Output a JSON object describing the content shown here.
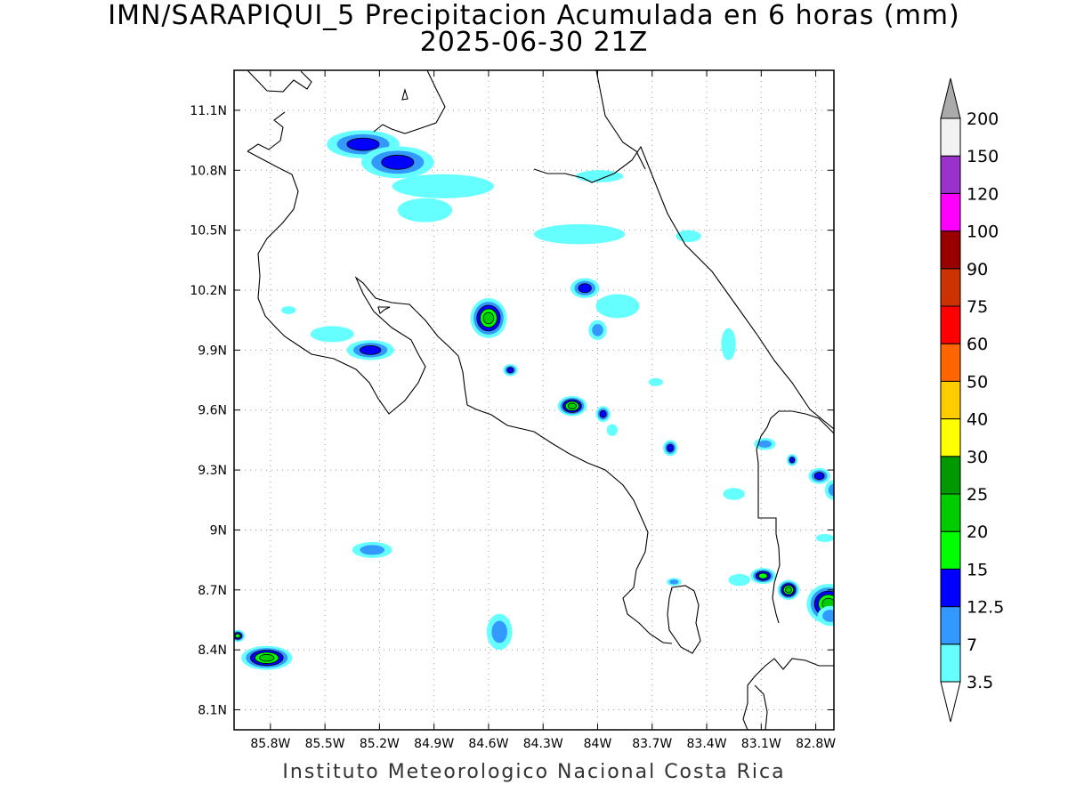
{
  "title": "IMN/SARAPIQUI_5 Precipitacion Acumulada en 6 horas (mm)",
  "subtitle": "2025-06-30 21Z",
  "footer": "Instituto Meteorologico Nacional Costa Rica",
  "map": {
    "lon_range": [
      -86.0,
      -82.7
    ],
    "lat_range": [
      8.0,
      11.3
    ],
    "lon_ticks": [
      "85.8W",
      "85.5W",
      "85.2W",
      "84.9W",
      "84.6W",
      "84.3W",
      "84W",
      "83.7W",
      "83.4W",
      "83.1W",
      "82.8W"
    ],
    "lon_tick_values": [
      -85.8,
      -85.5,
      -85.2,
      -84.9,
      -84.6,
      -84.3,
      -84.0,
      -83.7,
      -83.4,
      -83.1,
      -82.8
    ],
    "lat_ticks": [
      "11.1N",
      "10.8N",
      "10.5N",
      "10.2N",
      "9.9N",
      "9.6N",
      "9.3N",
      "9N",
      "8.7N",
      "8.4N",
      "8.1N"
    ],
    "lat_tick_values": [
      11.1,
      10.8,
      10.5,
      10.2,
      9.9,
      9.6,
      9.3,
      9.0,
      8.7,
      8.4,
      8.1
    ],
    "grid": true
  },
  "colorbar": {
    "levels": [
      "3.5",
      "7",
      "12.5",
      "15",
      "20",
      "25",
      "30",
      "40",
      "50",
      "60",
      "75",
      "90",
      "100",
      "120",
      "150",
      "200"
    ],
    "colors": [
      "#66ffff",
      "#3399ff",
      "#0000ff",
      "#00ff00",
      "#00cc00",
      "#009900",
      "#ffff00",
      "#ffcc00",
      "#ff6600",
      "#ff0000",
      "#cc3300",
      "#990000",
      "#ff00ff",
      "#9933cc",
      "#f2f2f2"
    ],
    "over_color": "#aaaaaa",
    "under_color": "#ffffff"
  },
  "precip_cells": [
    {
      "lon": -85.29,
      "lat": 10.93,
      "rx": 0.2,
      "ry": 0.07,
      "levels": [
        3.5,
        7,
        12.5
      ]
    },
    {
      "lon": -85.1,
      "lat": 10.84,
      "rx": 0.2,
      "ry": 0.08,
      "levels": [
        3.5,
        7,
        12.5
      ]
    },
    {
      "lon": -84.85,
      "lat": 10.72,
      "rx": 0.28,
      "ry": 0.06,
      "levels": [
        3.5
      ]
    },
    {
      "lon": -84.95,
      "lat": 10.6,
      "rx": 0.15,
      "ry": 0.06,
      "levels": [
        3.5
      ]
    },
    {
      "lon": -84.1,
      "lat": 10.48,
      "rx": 0.25,
      "ry": 0.05,
      "levels": [
        3.5
      ]
    },
    {
      "lon": -83.5,
      "lat": 10.47,
      "rx": 0.07,
      "ry": 0.03,
      "levels": [
        3.5
      ]
    },
    {
      "lon": -83.99,
      "lat": 10.77,
      "rx": 0.13,
      "ry": 0.03,
      "levels": [
        3.5
      ]
    },
    {
      "lon": -84.6,
      "lat": 10.06,
      "rx": 0.1,
      "ry": 0.1,
      "levels": [
        3.5,
        7,
        12.5,
        15,
        20
      ]
    },
    {
      "lon": -84.07,
      "lat": 10.21,
      "rx": 0.08,
      "ry": 0.05,
      "levels": [
        3.5,
        7,
        12.5
      ]
    },
    {
      "lon": -83.89,
      "lat": 10.12,
      "rx": 0.12,
      "ry": 0.06,
      "levels": [
        3.5
      ]
    },
    {
      "lon": -84.0,
      "lat": 10.0,
      "rx": 0.05,
      "ry": 0.05,
      "levels": [
        3.5,
        7
      ]
    },
    {
      "lon": -85.25,
      "lat": 9.9,
      "rx": 0.13,
      "ry": 0.05,
      "levels": [
        3.5,
        7,
        12.5
      ]
    },
    {
      "lon": -85.46,
      "lat": 9.98,
      "rx": 0.12,
      "ry": 0.04,
      "levels": [
        3.5
      ]
    },
    {
      "lon": -85.7,
      "lat": 10.1,
      "rx": 0.04,
      "ry": 0.02,
      "levels": [
        3.5
      ]
    },
    {
      "lon": -84.48,
      "lat": 9.8,
      "rx": 0.04,
      "ry": 0.03,
      "levels": [
        3.5,
        7,
        12.5
      ]
    },
    {
      "lon": -84.14,
      "lat": 9.62,
      "rx": 0.08,
      "ry": 0.05,
      "levels": [
        3.5,
        7,
        12.5,
        15,
        20
      ]
    },
    {
      "lon": -83.97,
      "lat": 9.58,
      "rx": 0.04,
      "ry": 0.04,
      "levels": [
        3.5,
        7,
        12.5
      ]
    },
    {
      "lon": -83.92,
      "lat": 9.5,
      "rx": 0.03,
      "ry": 0.03,
      "levels": [
        3.5
      ]
    },
    {
      "lon": -83.68,
      "lat": 9.74,
      "rx": 0.04,
      "ry": 0.02,
      "levels": [
        3.5
      ]
    },
    {
      "lon": -83.6,
      "lat": 9.41,
      "rx": 0.04,
      "ry": 0.04,
      "levels": [
        3.5,
        7,
        12.5
      ]
    },
    {
      "lon": -83.28,
      "lat": 9.93,
      "rx": 0.04,
      "ry": 0.08,
      "levels": [
        3.5
      ]
    },
    {
      "lon": -83.08,
      "lat": 9.43,
      "rx": 0.06,
      "ry": 0.03,
      "levels": [
        3.5,
        7
      ]
    },
    {
      "lon": -82.93,
      "lat": 9.35,
      "rx": 0.03,
      "ry": 0.03,
      "levels": [
        3.5,
        7,
        12.5
      ]
    },
    {
      "lon": -83.25,
      "lat": 9.18,
      "rx": 0.06,
      "ry": 0.03,
      "levels": [
        3.5
      ]
    },
    {
      "lon": -82.78,
      "lat": 9.27,
      "rx": 0.06,
      "ry": 0.04,
      "levels": [
        3.5,
        7,
        12.5
      ]
    },
    {
      "lon": -82.7,
      "lat": 9.2,
      "rx": 0.05,
      "ry": 0.05,
      "levels": [
        3.5,
        7
      ]
    },
    {
      "lon": -82.75,
      "lat": 8.96,
      "rx": 0.05,
      "ry": 0.02,
      "levels": [
        3.5
      ]
    },
    {
      "lon": -85.24,
      "lat": 8.9,
      "rx": 0.11,
      "ry": 0.04,
      "levels": [
        3.5,
        7
      ]
    },
    {
      "lon": -84.54,
      "lat": 8.49,
      "rx": 0.07,
      "ry": 0.09,
      "levels": [
        3.5,
        7
      ]
    },
    {
      "lon": -85.82,
      "lat": 8.36,
      "rx": 0.14,
      "ry": 0.06,
      "levels": [
        3.5,
        7,
        12.5,
        15,
        20
      ]
    },
    {
      "lon": -85.98,
      "lat": 8.47,
      "rx": 0.04,
      "ry": 0.03,
      "levels": [
        3.5,
        7,
        12.5,
        15
      ]
    },
    {
      "lon": -83.09,
      "lat": 8.77,
      "rx": 0.07,
      "ry": 0.04,
      "levels": [
        3.5,
        7,
        12.5,
        15
      ]
    },
    {
      "lon": -82.95,
      "lat": 8.7,
      "rx": 0.06,
      "ry": 0.05,
      "levels": [
        3.5,
        7,
        12.5,
        15,
        20
      ]
    },
    {
      "lon": -82.73,
      "lat": 8.63,
      "rx": 0.12,
      "ry": 0.1,
      "levels": [
        3.5,
        7,
        12.5,
        15,
        20
      ]
    },
    {
      "lon": -82.72,
      "lat": 8.57,
      "rx": 0.07,
      "ry": 0.05,
      "levels": [
        3.5,
        7
      ]
    },
    {
      "lon": -83.22,
      "lat": 8.75,
      "rx": 0.06,
      "ry": 0.03,
      "levels": [
        3.5
      ]
    },
    {
      "lon": -83.58,
      "lat": 8.74,
      "rx": 0.04,
      "ry": 0.02,
      "levels": [
        3.5,
        7
      ]
    }
  ]
}
